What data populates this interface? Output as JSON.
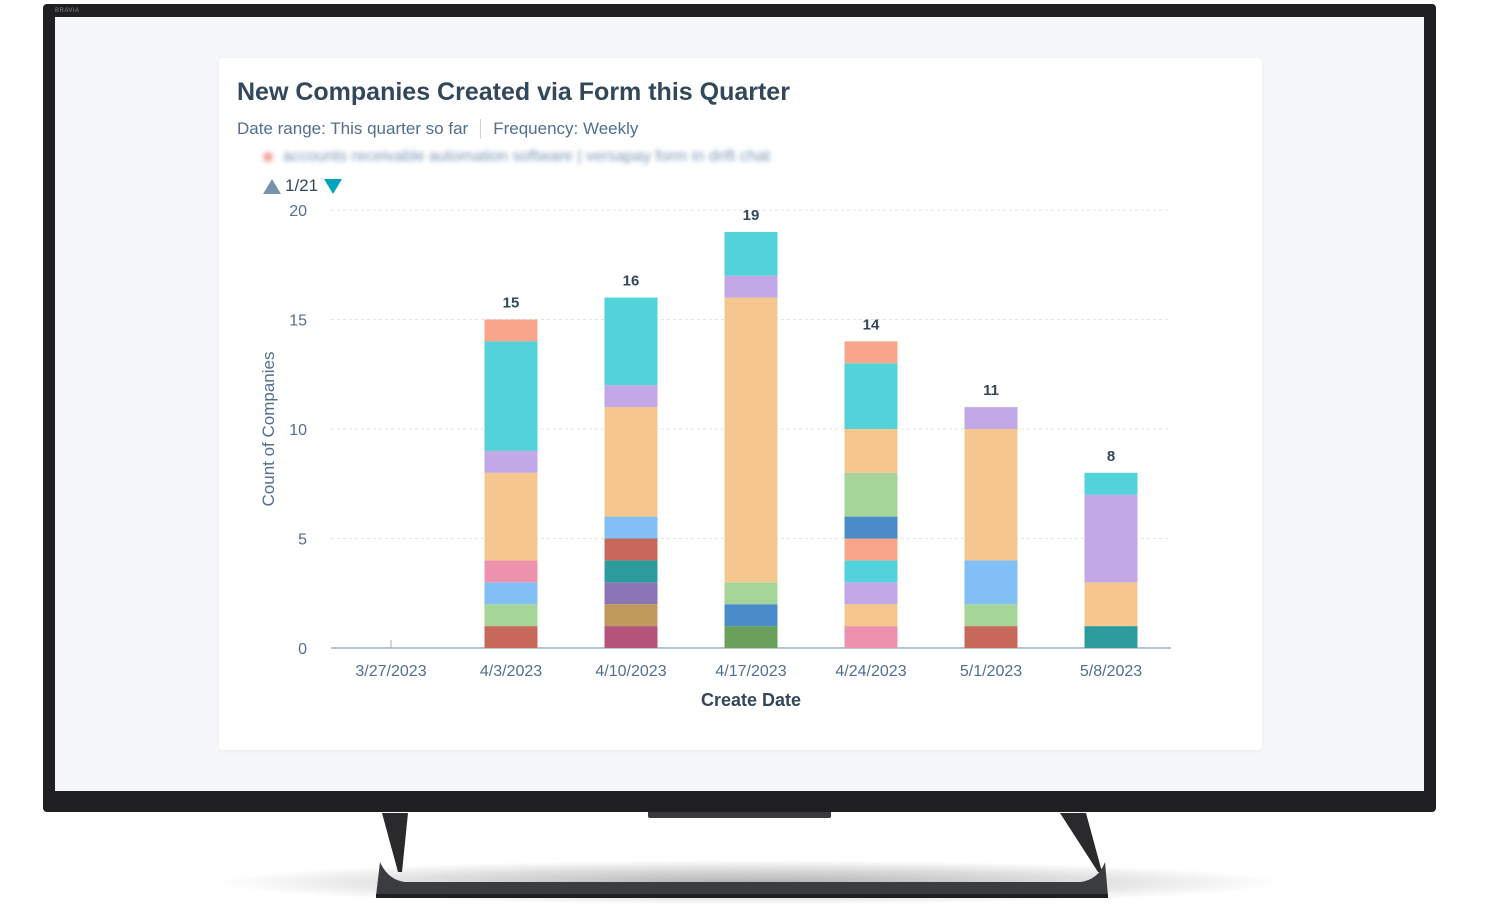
{
  "tv": {
    "brand": "BRAVIA"
  },
  "report": {
    "title": "New Companies Created via Form this Quarter",
    "date_range": "Date range: This quarter so far",
    "frequency": "Frequency: Weekly",
    "legend_blurred_text": "accounts receivable automation software | versapay form in drift chat",
    "pager": "1/21"
  },
  "chart_data": {
    "type": "bar",
    "stacked": true,
    "xlabel": "Create Date",
    "ylabel": "Count of Companies",
    "ylim": [
      0,
      20
    ],
    "yticks": [
      0,
      5,
      10,
      15,
      20
    ],
    "grid": true,
    "categories": [
      "3/27/2023",
      "4/3/2023",
      "4/10/2023",
      "4/17/2023",
      "4/24/2023",
      "5/1/2023",
      "5/8/2023"
    ],
    "totals": [
      0,
      15,
      16,
      19,
      14,
      11,
      8
    ],
    "stacks": [
      [],
      [
        {
          "value": 1,
          "color": "#c8685a"
        },
        {
          "value": 1,
          "color": "#a6d59a"
        },
        {
          "value": 1,
          "color": "#82bff5"
        },
        {
          "value": 1,
          "color": "#ec92ac"
        },
        {
          "value": 4,
          "color": "#f5c78e"
        },
        {
          "value": 1,
          "color": "#c2a8e6"
        },
        {
          "value": 5,
          "color": "#52d3d9"
        },
        {
          "value": 1,
          "color": "#f7a58b"
        }
      ],
      [
        {
          "value": 1,
          "color": "#b5547a"
        },
        {
          "value": 1,
          "color": "#c09a5c"
        },
        {
          "value": 1,
          "color": "#8b75b4"
        },
        {
          "value": 1,
          "color": "#2c9b9b"
        },
        {
          "value": 1,
          "color": "#c8685a"
        },
        {
          "value": 1,
          "color": "#82bff5"
        },
        {
          "value": 5,
          "color": "#f5c78e"
        },
        {
          "value": 1,
          "color": "#c2a8e6"
        },
        {
          "value": 4,
          "color": "#52d3d9"
        }
      ],
      [
        {
          "value": 1,
          "color": "#6aa05a"
        },
        {
          "value": 1,
          "color": "#4a8cc9"
        },
        {
          "value": 1,
          "color": "#a6d59a"
        },
        {
          "value": 13,
          "color": "#f5c78e"
        },
        {
          "value": 1,
          "color": "#c2a8e6"
        },
        {
          "value": 2,
          "color": "#52d3d9"
        }
      ],
      [
        {
          "value": 1,
          "color": "#ec92ac"
        },
        {
          "value": 1,
          "color": "#f5c78e"
        },
        {
          "value": 1,
          "color": "#c2a8e6"
        },
        {
          "value": 1,
          "color": "#52d3d9"
        },
        {
          "value": 1,
          "color": "#f7a58b"
        },
        {
          "value": 1,
          "color": "#4a8cc9"
        },
        {
          "value": 2,
          "color": "#a6d59a"
        },
        {
          "value": 2,
          "color": "#f5c78e"
        },
        {
          "value": 3,
          "color": "#52d3d9"
        },
        {
          "value": 1,
          "color": "#f7a58b"
        }
      ],
      [
        {
          "value": 1,
          "color": "#c8685a"
        },
        {
          "value": 1,
          "color": "#a6d59a"
        },
        {
          "value": 2,
          "color": "#82bff5"
        },
        {
          "value": 6,
          "color": "#f5c78e"
        },
        {
          "value": 1,
          "color": "#c2a8e6"
        }
      ],
      [
        {
          "value": 1,
          "color": "#2c9b9b"
        },
        {
          "value": 2,
          "color": "#f5c78e"
        },
        {
          "value": 4,
          "color": "#c2a8e6"
        },
        {
          "value": 1,
          "color": "#52d3d9"
        }
      ]
    ],
    "colors": {
      "axis_text": "#516f90",
      "title_text": "#33475b",
      "grid": "#dfe3eb",
      "axis_line": "#99afc4"
    }
  }
}
